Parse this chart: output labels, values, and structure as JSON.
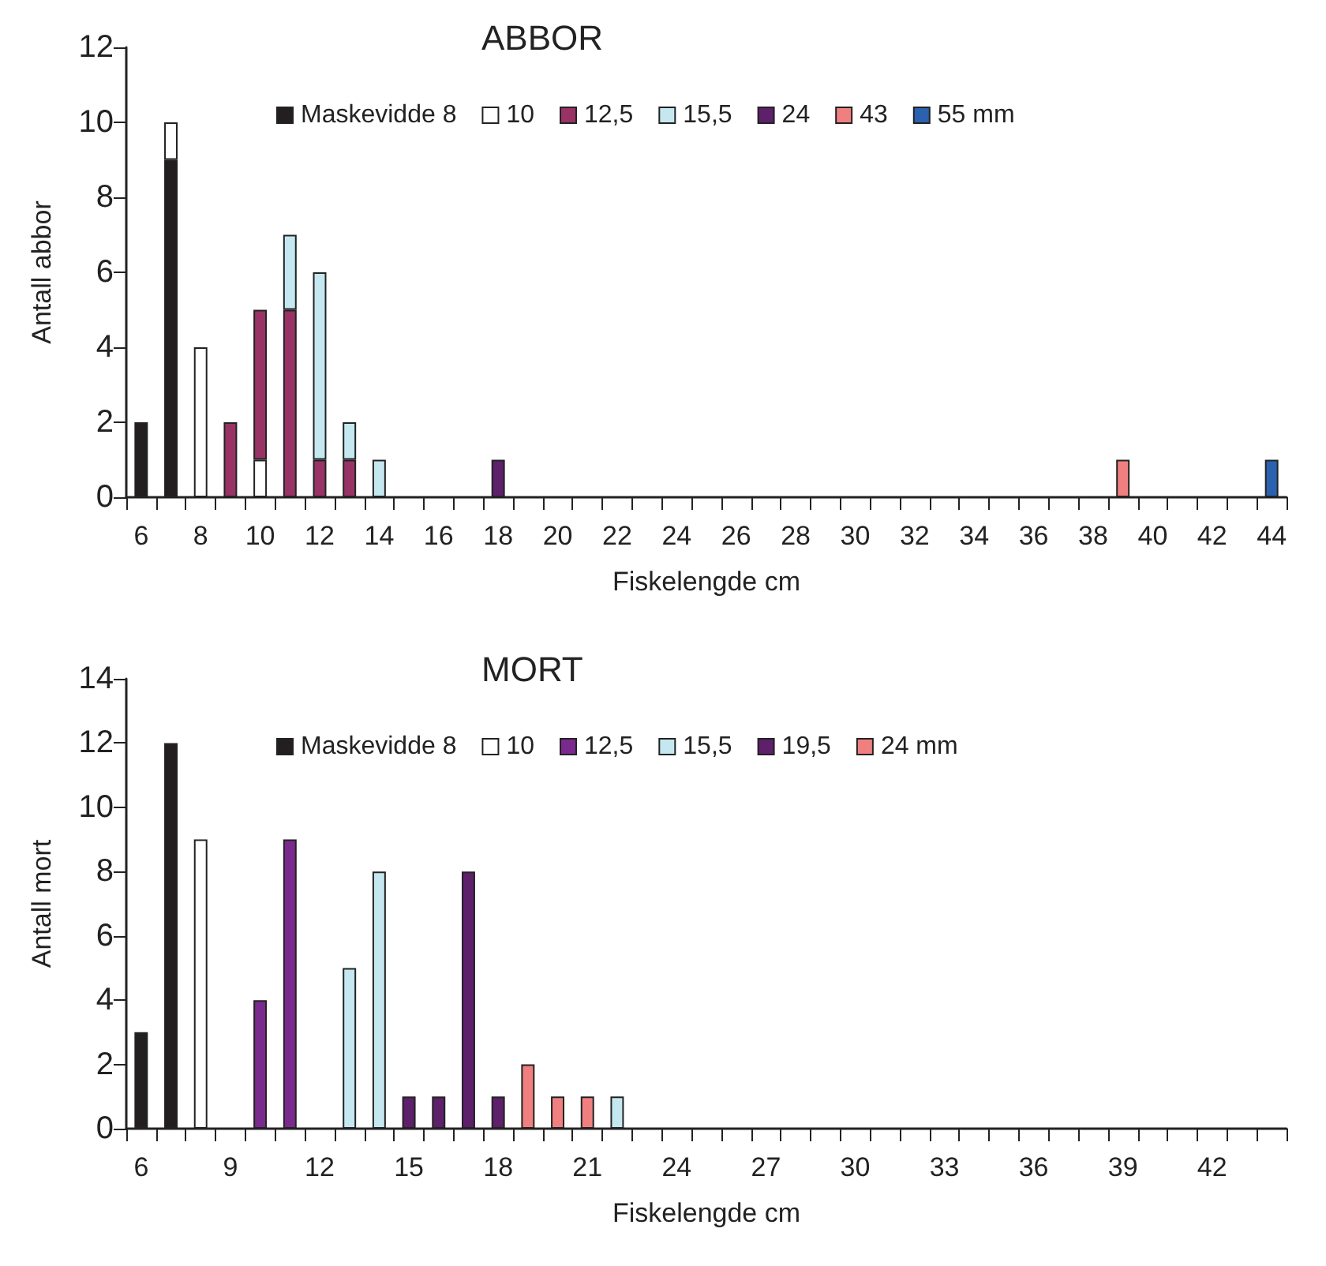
{
  "chart_data": [
    {
      "type": "bar",
      "title": "ABBOR",
      "xlabel": "Fiskelengde cm",
      "ylabel": "Antall abbor",
      "stacked": true,
      "legend": "top",
      "grid": false,
      "ylim": [
        0,
        12
      ],
      "yticks": [
        0,
        2,
        4,
        6,
        8,
        10,
        12
      ],
      "categories": [
        "6",
        null,
        "8",
        null,
        "10",
        null,
        "12",
        null,
        "14",
        null,
        "16",
        null,
        "18",
        null,
        "20",
        null,
        "22",
        null,
        "24",
        null,
        "26",
        null,
        "28",
        null,
        "30",
        null,
        "32",
        null,
        "34",
        null,
        "36",
        null,
        "38",
        null,
        "40",
        null,
        "42",
        null,
        "44"
      ],
      "series": [
        {
          "name": "Maskevidde 8",
          "color": "#231f20",
          "values": [
            2,
            9,
            null,
            null,
            null,
            null,
            null,
            null,
            null,
            null,
            null,
            null,
            null,
            null,
            null,
            null,
            null,
            null,
            null,
            null,
            null,
            null,
            null,
            null,
            null,
            null,
            null,
            null,
            null,
            null,
            null,
            null,
            null,
            null,
            null,
            null,
            null,
            null,
            null
          ]
        },
        {
          "name": "10",
          "color": "#ffffff",
          "values": [
            null,
            1,
            4,
            null,
            1,
            null,
            null,
            null,
            null,
            null,
            null,
            null,
            null,
            null,
            null,
            null,
            null,
            null,
            null,
            null,
            null,
            null,
            null,
            null,
            null,
            null,
            null,
            null,
            null,
            null,
            null,
            null,
            null,
            null,
            null,
            null,
            null,
            null,
            null
          ]
        },
        {
          "name": "12,5",
          "color": "#993366",
          "values": [
            null,
            null,
            null,
            2,
            4,
            5,
            1,
            1,
            null,
            null,
            null,
            null,
            null,
            null,
            null,
            null,
            null,
            null,
            null,
            null,
            null,
            null,
            null,
            null,
            null,
            null,
            null,
            null,
            null,
            null,
            null,
            null,
            null,
            null,
            null,
            null,
            null,
            null,
            null
          ]
        },
        {
          "name": "15,5",
          "color": "#c5e8f0",
          "values": [
            null,
            null,
            null,
            null,
            null,
            2,
            5,
            1,
            1,
            null,
            null,
            null,
            null,
            null,
            null,
            null,
            null,
            null,
            null,
            null,
            null,
            null,
            null,
            null,
            null,
            null,
            null,
            null,
            null,
            null,
            null,
            null,
            null,
            null,
            null,
            null,
            null,
            null,
            null
          ]
        },
        {
          "name": "24",
          "color": "#5e1f6b",
          "values": [
            null,
            null,
            null,
            null,
            null,
            null,
            null,
            null,
            null,
            null,
            null,
            null,
            1,
            null,
            null,
            null,
            null,
            null,
            null,
            null,
            null,
            null,
            null,
            null,
            null,
            null,
            null,
            null,
            null,
            null,
            null,
            null,
            null,
            null,
            null,
            null,
            null,
            null,
            null
          ]
        },
        {
          "name": "43",
          "color": "#f08080",
          "values": [
            null,
            null,
            null,
            null,
            null,
            null,
            null,
            null,
            null,
            null,
            null,
            null,
            null,
            null,
            null,
            null,
            null,
            null,
            null,
            null,
            null,
            null,
            null,
            null,
            null,
            null,
            null,
            null,
            null,
            null,
            null,
            null,
            null,
            1,
            null,
            null,
            null,
            null,
            null
          ]
        },
        {
          "name": "55 mm",
          "color": "#2a62b0",
          "values": [
            null,
            null,
            null,
            null,
            null,
            null,
            null,
            null,
            null,
            null,
            null,
            null,
            null,
            null,
            null,
            null,
            null,
            null,
            null,
            null,
            null,
            null,
            null,
            null,
            null,
            null,
            null,
            null,
            null,
            null,
            null,
            null,
            null,
            null,
            null,
            null,
            null,
            null,
            1
          ]
        }
      ]
    },
    {
      "type": "bar",
      "title": "MORT",
      "xlabel": "Fiskelengde cm",
      "ylabel": "Antall mort",
      "stacked": true,
      "legend": "top",
      "grid": false,
      "ylim": [
        0,
        14
      ],
      "yticks": [
        0,
        2,
        4,
        6,
        8,
        10,
        12,
        14
      ],
      "categories": [
        "6",
        null,
        null,
        "9",
        null,
        null,
        "12",
        null,
        null,
        "15",
        null,
        null,
        "18",
        null,
        null,
        "21",
        null,
        null,
        "24",
        null,
        null,
        "27",
        null,
        null,
        "30",
        null,
        null,
        "33",
        null,
        null,
        "36",
        null,
        null,
        "39",
        null,
        null,
        "42",
        null,
        null
      ],
      "series": [
        {
          "name": "Maskevidde 8",
          "color": "#231f20",
          "values": [
            3,
            12,
            null,
            null,
            null,
            null,
            null,
            null,
            null,
            null,
            null,
            null,
            null,
            null,
            null,
            null,
            null,
            null,
            null,
            null,
            null,
            null,
            null,
            null,
            null,
            null,
            null,
            null,
            null,
            null,
            null,
            null,
            null,
            null,
            null,
            null,
            null,
            null,
            null
          ]
        },
        {
          "name": "10",
          "color": "#ffffff",
          "values": [
            null,
            null,
            9,
            null,
            null,
            null,
            null,
            null,
            null,
            null,
            null,
            null,
            null,
            null,
            null,
            null,
            null,
            null,
            null,
            null,
            null,
            null,
            null,
            null,
            null,
            null,
            null,
            null,
            null,
            null,
            null,
            null,
            null,
            null,
            null,
            null,
            null,
            null,
            null
          ]
        },
        {
          "name": "12,5",
          "color": "#7a2a8e",
          "values": [
            null,
            null,
            null,
            null,
            4,
            9,
            null,
            null,
            null,
            null,
            null,
            null,
            null,
            null,
            null,
            null,
            null,
            null,
            null,
            null,
            null,
            null,
            null,
            null,
            null,
            null,
            null,
            null,
            null,
            null,
            null,
            null,
            null,
            null,
            null,
            null,
            null,
            null,
            null
          ]
        },
        {
          "name": "15,5",
          "color": "#c5e8f0",
          "values": [
            null,
            null,
            null,
            null,
            null,
            null,
            null,
            5,
            8,
            null,
            null,
            null,
            null,
            null,
            null,
            null,
            1,
            null,
            null,
            null,
            null,
            null,
            null,
            null,
            null,
            null,
            null,
            null,
            null,
            null,
            null,
            null,
            null,
            null,
            null,
            null,
            null,
            null,
            null
          ]
        },
        {
          "name": "19,5",
          "color": "#5e1f6b",
          "values": [
            null,
            null,
            null,
            null,
            null,
            null,
            null,
            null,
            null,
            1,
            1,
            8,
            1,
            null,
            null,
            null,
            null,
            null,
            null,
            null,
            null,
            null,
            null,
            null,
            null,
            null,
            null,
            null,
            null,
            null,
            null,
            null,
            null,
            null,
            null,
            null,
            null,
            null,
            null
          ]
        },
        {
          "name": "24 mm",
          "color": "#f08080",
          "values": [
            null,
            null,
            null,
            null,
            null,
            null,
            null,
            null,
            null,
            null,
            null,
            null,
            null,
            2,
            1,
            1,
            null,
            null,
            null,
            null,
            null,
            null,
            null,
            null,
            null,
            null,
            null,
            null,
            null,
            null,
            null,
            null,
            null,
            null,
            null,
            null,
            null,
            null,
            null
          ]
        }
      ]
    }
  ]
}
